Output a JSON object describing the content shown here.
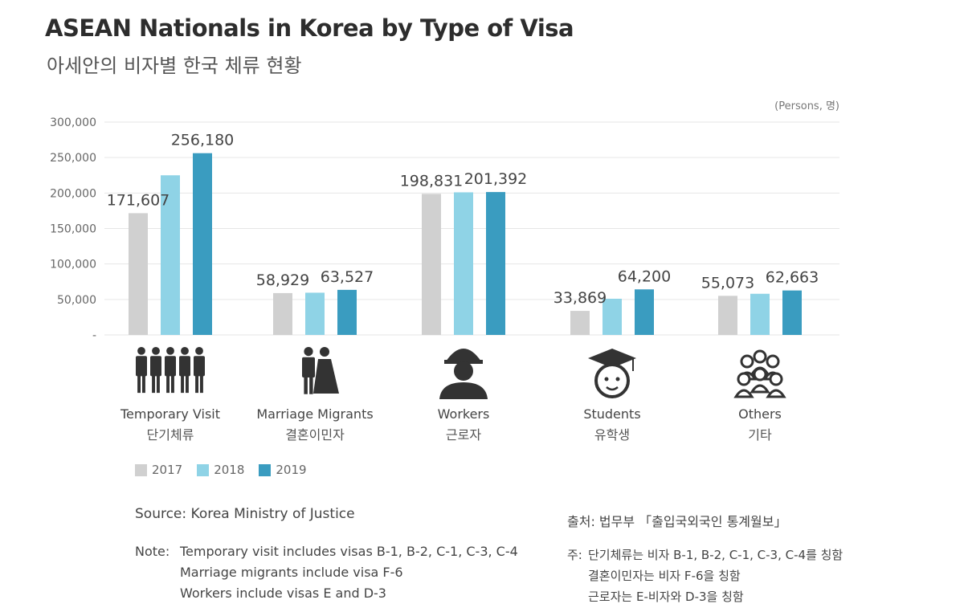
{
  "title": "ASEAN Nationals in Korea by Type of Visa",
  "subtitle": "아세안의 비자별 한국 체류 현황",
  "unit_label": "(Persons, 명)",
  "colors": {
    "2017": "#d0d0d0",
    "2018": "#8fd3e6",
    "2019": "#3a9cc0"
  },
  "chart_data": {
    "type": "bar",
    "categories": [
      "Temporary Visit",
      "Marriage Migrants",
      "Workers",
      "Students",
      "Others"
    ],
    "categories_ko": [
      "단기체류",
      "결혼이민자",
      "근로자",
      "유학생",
      "기타"
    ],
    "category_icons": [
      "people-group-icon",
      "couple-icon",
      "worker-icon",
      "graduate-icon",
      "group-icon"
    ],
    "series": [
      {
        "name": "2017",
        "values": [
          171607,
          58929,
          198831,
          33869,
          55073
        ]
      },
      {
        "name": "2018",
        "values": [
          225000,
          59500,
          201000,
          51000,
          58000
        ]
      },
      {
        "name": "2019",
        "values": [
          256180,
          63527,
          201392,
          64200,
          62663
        ]
      }
    ],
    "data_labels": [
      {
        "category": 0,
        "series": 0,
        "text": "171,607"
      },
      {
        "category": 0,
        "series": 2,
        "text": "256,180"
      },
      {
        "category": 1,
        "series": 0,
        "text": "58,929"
      },
      {
        "category": 1,
        "series": 2,
        "text": "63,527"
      },
      {
        "category": 2,
        "series": 0,
        "text": "198,831"
      },
      {
        "category": 2,
        "series": 2,
        "text": "201,392"
      },
      {
        "category": 3,
        "series": 0,
        "text": "33,869"
      },
      {
        "category": 3,
        "series": 2,
        "text": "64,200"
      },
      {
        "category": 4,
        "series": 0,
        "text": "55,073"
      },
      {
        "category": 4,
        "series": 2,
        "text": "62,663"
      }
    ],
    "yticks": [
      0,
      50000,
      100000,
      150000,
      200000,
      250000,
      300000
    ],
    "ytick_labels": [
      "-",
      "50,000",
      "100,000",
      "150,000",
      "200,000",
      "250,000",
      "300,000"
    ],
    "ylim": [
      0,
      300000
    ],
    "grid": true,
    "legend": "bottom-left"
  },
  "source": "Source: Korea Ministry of Justice",
  "source_ko": "출처: 법무부 「출입국외국인 통계월보」",
  "notes": {
    "label": "Note:",
    "lines": [
      "Temporary visit includes visas B-1, B-2, C-1, C-3, C-4",
      "Marriage migrants include visa F-6",
      "Workers include visas E and D-3"
    ]
  },
  "notes_ko": {
    "label": "주:",
    "lines": [
      "단기체류는 비자 B-1, B-2, C-1, C-3, C-4를 칭함",
      "결혼이민자는 비자 F-6을 칭함",
      "근로자는 E-비자와 D-3을 칭함"
    ]
  }
}
